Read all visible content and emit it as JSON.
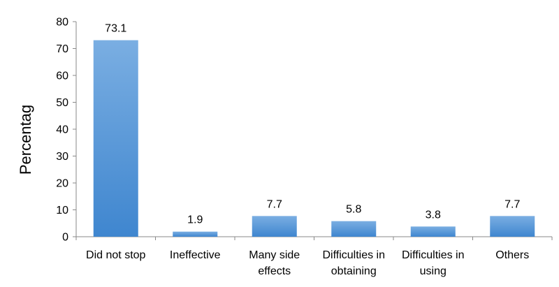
{
  "chart_data": {
    "type": "bar",
    "ylabel": "Percentag",
    "xlabel": "",
    "title": "",
    "ylim": [
      0,
      80
    ],
    "yticks": [
      0,
      10,
      20,
      30,
      40,
      50,
      60,
      70,
      80
    ],
    "grid": false,
    "legend": "none",
    "categories": [
      [
        "Did not stop"
      ],
      [
        "Ineffective"
      ],
      [
        "Many side",
        "effects"
      ],
      [
        "Difficulties in",
        "obtaining"
      ],
      [
        "Difficulties in",
        "using"
      ],
      [
        "Others"
      ]
    ],
    "values": [
      73.1,
      1.9,
      7.7,
      5.8,
      3.8,
      7.7
    ],
    "data_labels": [
      "73.1",
      "1.9",
      "7.7",
      "5.8",
      "3.8",
      "7.7"
    ],
    "colors": {
      "bar_light": "#7aaee2",
      "bar_dark": "#3f86cf",
      "axis": "#888888"
    }
  }
}
